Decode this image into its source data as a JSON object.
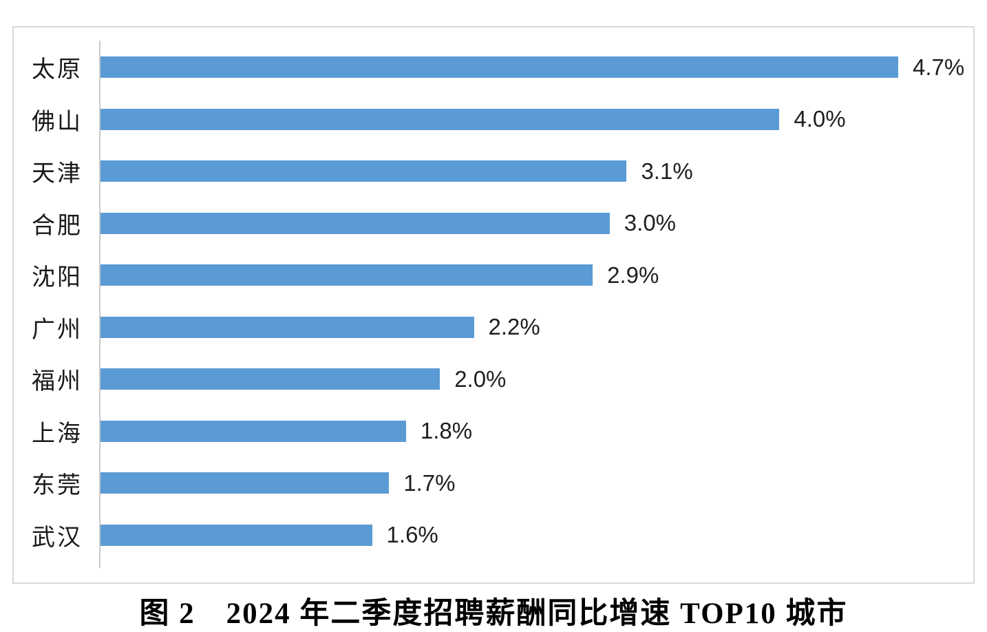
{
  "chart": {
    "bar_color": "#5b9bd5",
    "axis_line_color": "#c9c9c9",
    "border_color": "#d9d9d9",
    "caption": "图 2　2024 年二季度招聘薪酬同比增速 TOP10 城市"
  },
  "chart_data": {
    "type": "bar",
    "orientation": "horizontal",
    "title": "图 2　2024 年二季度招聘薪酬同比增速 TOP10 城市",
    "categories": [
      "太原",
      "佛山",
      "天津",
      "合肥",
      "沈阳",
      "广州",
      "福州",
      "上海",
      "东莞",
      "武汉"
    ],
    "values": [
      4.7,
      4.0,
      3.1,
      3.0,
      2.9,
      2.2,
      2.0,
      1.8,
      1.7,
      1.6
    ],
    "value_labels": [
      "4.7%",
      "4.0%",
      "3.1%",
      "3.0%",
      "2.9%",
      "2.2%",
      "2.0%",
      "1.8%",
      "1.7%",
      "1.6%"
    ],
    "xlabel": "",
    "ylabel": "",
    "xlim": [
      0,
      5
    ],
    "grid": false,
    "legend": false,
    "data_labels": "outside-end"
  }
}
